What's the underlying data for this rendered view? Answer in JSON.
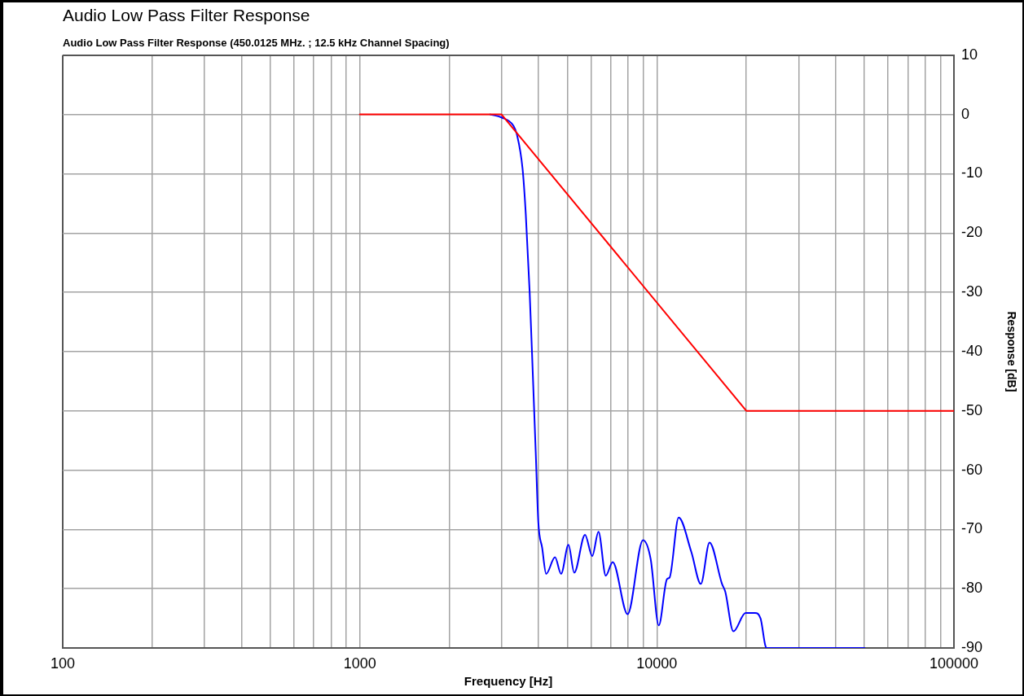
{
  "chart_data": {
    "type": "line",
    "title": "Audio Low Pass Filter Response",
    "subtitle": "Audio Low Pass Filter Response (450.0125 MHz. ; 12.5 kHz Channel Spacing)",
    "xlabel": "Frequency [Hz]",
    "ylabel": "Response [dB]",
    "log": "x",
    "xlim": [
      100,
      100000
    ],
    "xticks": [
      100,
      {
        "value": 200,
        "label": null
      },
      {
        "value": 300,
        "label": null
      },
      {
        "value": 400,
        "label": null
      },
      {
        "value": 500,
        "label": null
      },
      {
        "value": 600,
        "label": null
      },
      {
        "value": 700,
        "label": null
      },
      {
        "value": 800,
        "label": null
      },
      {
        "value": 900,
        "label": null
      },
      1000,
      {
        "value": 2000,
        "label": null
      },
      {
        "value": 3000,
        "label": null
      },
      {
        "value": 4000,
        "label": null
      },
      {
        "value": 5000,
        "label": null
      },
      {
        "value": 6000,
        "label": null
      },
      {
        "value": 7000,
        "label": null
      },
      {
        "value": 8000,
        "label": null
      },
      {
        "value": 9000,
        "label": null
      },
      10000,
      {
        "value": 20000,
        "label": null
      },
      {
        "value": 30000,
        "label": null
      },
      {
        "value": 40000,
        "label": null
      },
      {
        "value": 50000,
        "label": null
      },
      {
        "value": 60000,
        "label": null
      },
      {
        "value": 70000,
        "label": null
      },
      {
        "value": 80000,
        "label": null
      },
      {
        "value": 90000,
        "label": null
      },
      100000
    ],
    "ylim": [
      -90,
      10
    ],
    "yticks": [
      -90,
      -80,
      -70,
      -60,
      -50,
      -40,
      -30,
      -20,
      -10,
      0,
      10
    ],
    "grid": true,
    "marker": "none",
    "line_style": "solid",
    "series": [
      {
        "color": "#ff0000",
        "x": [
          1000,
          3000,
          20000,
          100000
        ],
        "values": [
          0,
          0,
          -50,
          -50
        ]
      },
      {
        "color": "#0000ff",
        "x": [
          2750,
          3000,
          3290,
          3380,
          3530,
          3620,
          3730,
          3830,
          3910,
          3990,
          4110,
          4240,
          4540,
          4760,
          5040,
          5270,
          5730,
          6060,
          6360,
          6730,
          7100,
          7970,
          8980,
          9530,
          10150,
          10810,
          11040,
          11840,
          13060,
          14060,
          15040,
          16570,
          16990,
          18090,
          19890,
          21410,
          22330,
          23180,
          23440,
          50000
        ],
        "values": [
          0,
          -0.5,
          -1.9,
          -3.4,
          -9.1,
          -16.8,
          -29.9,
          -44.9,
          -56.9,
          -68.8,
          -73.1,
          -77.5,
          -74.7,
          -77.5,
          -72.6,
          -77.3,
          -70.9,
          -74.5,
          -70.4,
          -77.8,
          -75.5,
          -84.3,
          -71.8,
          -75.0,
          -86.2,
          -78.4,
          -78.1,
          -68.0,
          -73.8,
          -79.2,
          -72.2,
          -79.2,
          -80.5,
          -87.2,
          -84.1,
          -84.1,
          -85.0,
          -89.6,
          -90,
          -90
        ]
      }
    ]
  }
}
